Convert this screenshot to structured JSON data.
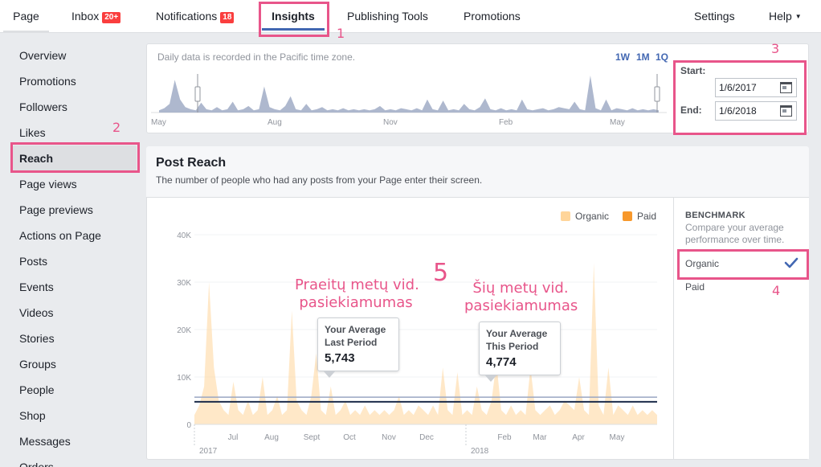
{
  "nav": {
    "tabs": [
      {
        "label": "Page"
      },
      {
        "label": "Inbox",
        "badge": "20+"
      },
      {
        "label": "Notifications",
        "badge": "18"
      },
      {
        "label": "Insights"
      },
      {
        "label": "Publishing Tools"
      },
      {
        "label": "Promotions"
      }
    ],
    "settings": "Settings",
    "help": "Help"
  },
  "sidebar": {
    "items": [
      "Overview",
      "Promotions",
      "Followers",
      "Likes",
      "Reach",
      "Page views",
      "Page previews",
      "Actions on Page",
      "Posts",
      "Events",
      "Videos",
      "Stories",
      "Groups",
      "People",
      "Shop",
      "Messages",
      "Orders"
    ],
    "active": "Reach"
  },
  "timeline": {
    "note": "Daily data is recorded in the Pacific time zone.",
    "ranges": [
      "1W",
      "1M",
      "1Q"
    ],
    "months": [
      "May",
      "Aug",
      "Nov",
      "Feb",
      "May"
    ]
  },
  "date_range": {
    "start_label": "Start:",
    "start_value": "1/6/2017",
    "end_label": "End:",
    "end_value": "1/6/2018"
  },
  "section": {
    "title": "Post Reach",
    "description": "The number of people who had any posts from your Page enter their screen."
  },
  "legend": [
    {
      "label": "Organic",
      "color": "#ffd59a"
    },
    {
      "label": "Paid",
      "color": "#f7982b"
    }
  ],
  "benchmark": {
    "title": "BENCHMARK",
    "description": "Compare your average performance over time.",
    "options": [
      "Organic",
      "Paid"
    ],
    "selected": "Organic"
  },
  "tooltips": {
    "last": {
      "line1": "Your Average",
      "line2": "Last Period",
      "value": "5,743"
    },
    "this": {
      "line1": "Your Average",
      "line2": "This Period",
      "value": "4,774"
    }
  },
  "annotations": {
    "n1": "1",
    "n2": "2",
    "n3": "3",
    "n4": "4",
    "n5": "5",
    "text_last": [
      "Praeitų metų vid.",
      "pasiekiamumas"
    ],
    "text_this": [
      "Šių metų vid.",
      "pasiekiamumas"
    ]
  },
  "colors": {
    "accent": "#4267b2",
    "highlight": "#e8558a",
    "organic": "#ffd59a",
    "paid": "#f7982b"
  },
  "chart_data": {
    "type": "area",
    "title": "Post Reach",
    "ylim": [
      0,
      40000
    ],
    "y_ticks": [
      "0",
      "10K",
      "20K",
      "30K",
      "40K"
    ],
    "x_ticks": [
      "Jul",
      "Aug",
      "Sept",
      "Oct",
      "Nov",
      "Dec",
      "Feb",
      "Mar",
      "Apr",
      "May"
    ],
    "year_labels": [
      "2017",
      "2018"
    ],
    "averages": {
      "last_period": 5743,
      "this_period": 4774
    },
    "series": [
      {
        "name": "Organic",
        "color": "#ffd59a",
        "values": [
          2000,
          4000,
          8000,
          30000,
          12000,
          5000,
          3000,
          2000,
          9000,
          3000,
          2000,
          5000,
          2000,
          3000,
          10000,
          2000,
          3000,
          6000,
          2000,
          3000,
          24000,
          5000,
          3000,
          2000,
          6000,
          15000,
          3000,
          2000,
          8000,
          2000,
          3000,
          5000,
          2000,
          3000,
          2000,
          4000,
          2000,
          3000,
          2000,
          3000,
          2000,
          3000,
          6000,
          2000,
          3000,
          2000,
          4000,
          3000,
          2000,
          4000,
          2000,
          12000,
          3000,
          2000,
          11000,
          2000,
          3000,
          2000,
          8000,
          3000,
          2000,
          5000,
          13000,
          3000,
          2000,
          4000,
          2000,
          3000,
          2000,
          12000,
          3000,
          2000,
          3000,
          4000,
          2000,
          3000,
          5000,
          4000,
          3000,
          10000,
          3000,
          2000,
          34000,
          4000,
          2000,
          12000,
          2000,
          4000,
          3000,
          2000,
          4000,
          2000,
          3000,
          2000,
          3000,
          2000
        ],
        "x_start": "2017-06-01",
        "x_end": "2018-06-01"
      },
      {
        "name": "Paid",
        "color": "#f7982b",
        "values": []
      }
    ]
  }
}
